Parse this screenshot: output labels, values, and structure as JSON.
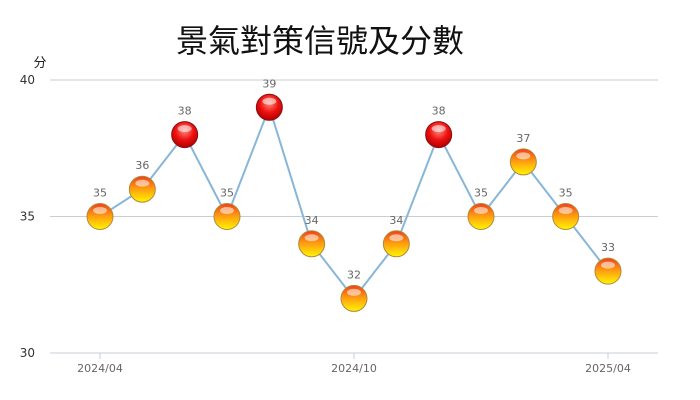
{
  "chart_data": {
    "type": "line",
    "title": "景氣對策信號及分數",
    "ylabel": "分",
    "ylim": [
      30,
      40
    ],
    "yticks": [
      30,
      35,
      40
    ],
    "grid": "horizontal",
    "xtick_labels": [
      {
        "index": 0,
        "label": "2024/04"
      },
      {
        "index": 6,
        "label": "2024/10"
      },
      {
        "index": 12,
        "label": "2025/04"
      }
    ],
    "points": [
      {
        "x": "2024/04",
        "y": 35,
        "signal": "yellow"
      },
      {
        "x": "2024/05",
        "y": 36,
        "signal": "yellow"
      },
      {
        "x": "2024/06",
        "y": 38,
        "signal": "red"
      },
      {
        "x": "2024/07",
        "y": 35,
        "signal": "yellow"
      },
      {
        "x": "2024/08",
        "y": 39,
        "signal": "red"
      },
      {
        "x": "2024/09",
        "y": 34,
        "signal": "yellow"
      },
      {
        "x": "2024/10",
        "y": 32,
        "signal": "yellow"
      },
      {
        "x": "2024/11",
        "y": 34,
        "signal": "yellow"
      },
      {
        "x": "2024/12",
        "y": 38,
        "signal": "red"
      },
      {
        "x": "2025/01",
        "y": 35,
        "signal": "yellow"
      },
      {
        "x": "2025/02",
        "y": 37,
        "signal": "yellow"
      },
      {
        "x": "2025/03",
        "y": 35,
        "signal": "yellow"
      },
      {
        "x": "2025/04",
        "y": 33,
        "signal": "yellow"
      }
    ],
    "colors": {
      "line": "#88b6d8",
      "grid": "#c7ced6",
      "red_top": "#ff6a5a",
      "red_bottom": "#c80000",
      "yellow_top": "#f3441e",
      "yellow_bottom": "#fff200",
      "marker_stroke": "#b08a3a"
    }
  }
}
